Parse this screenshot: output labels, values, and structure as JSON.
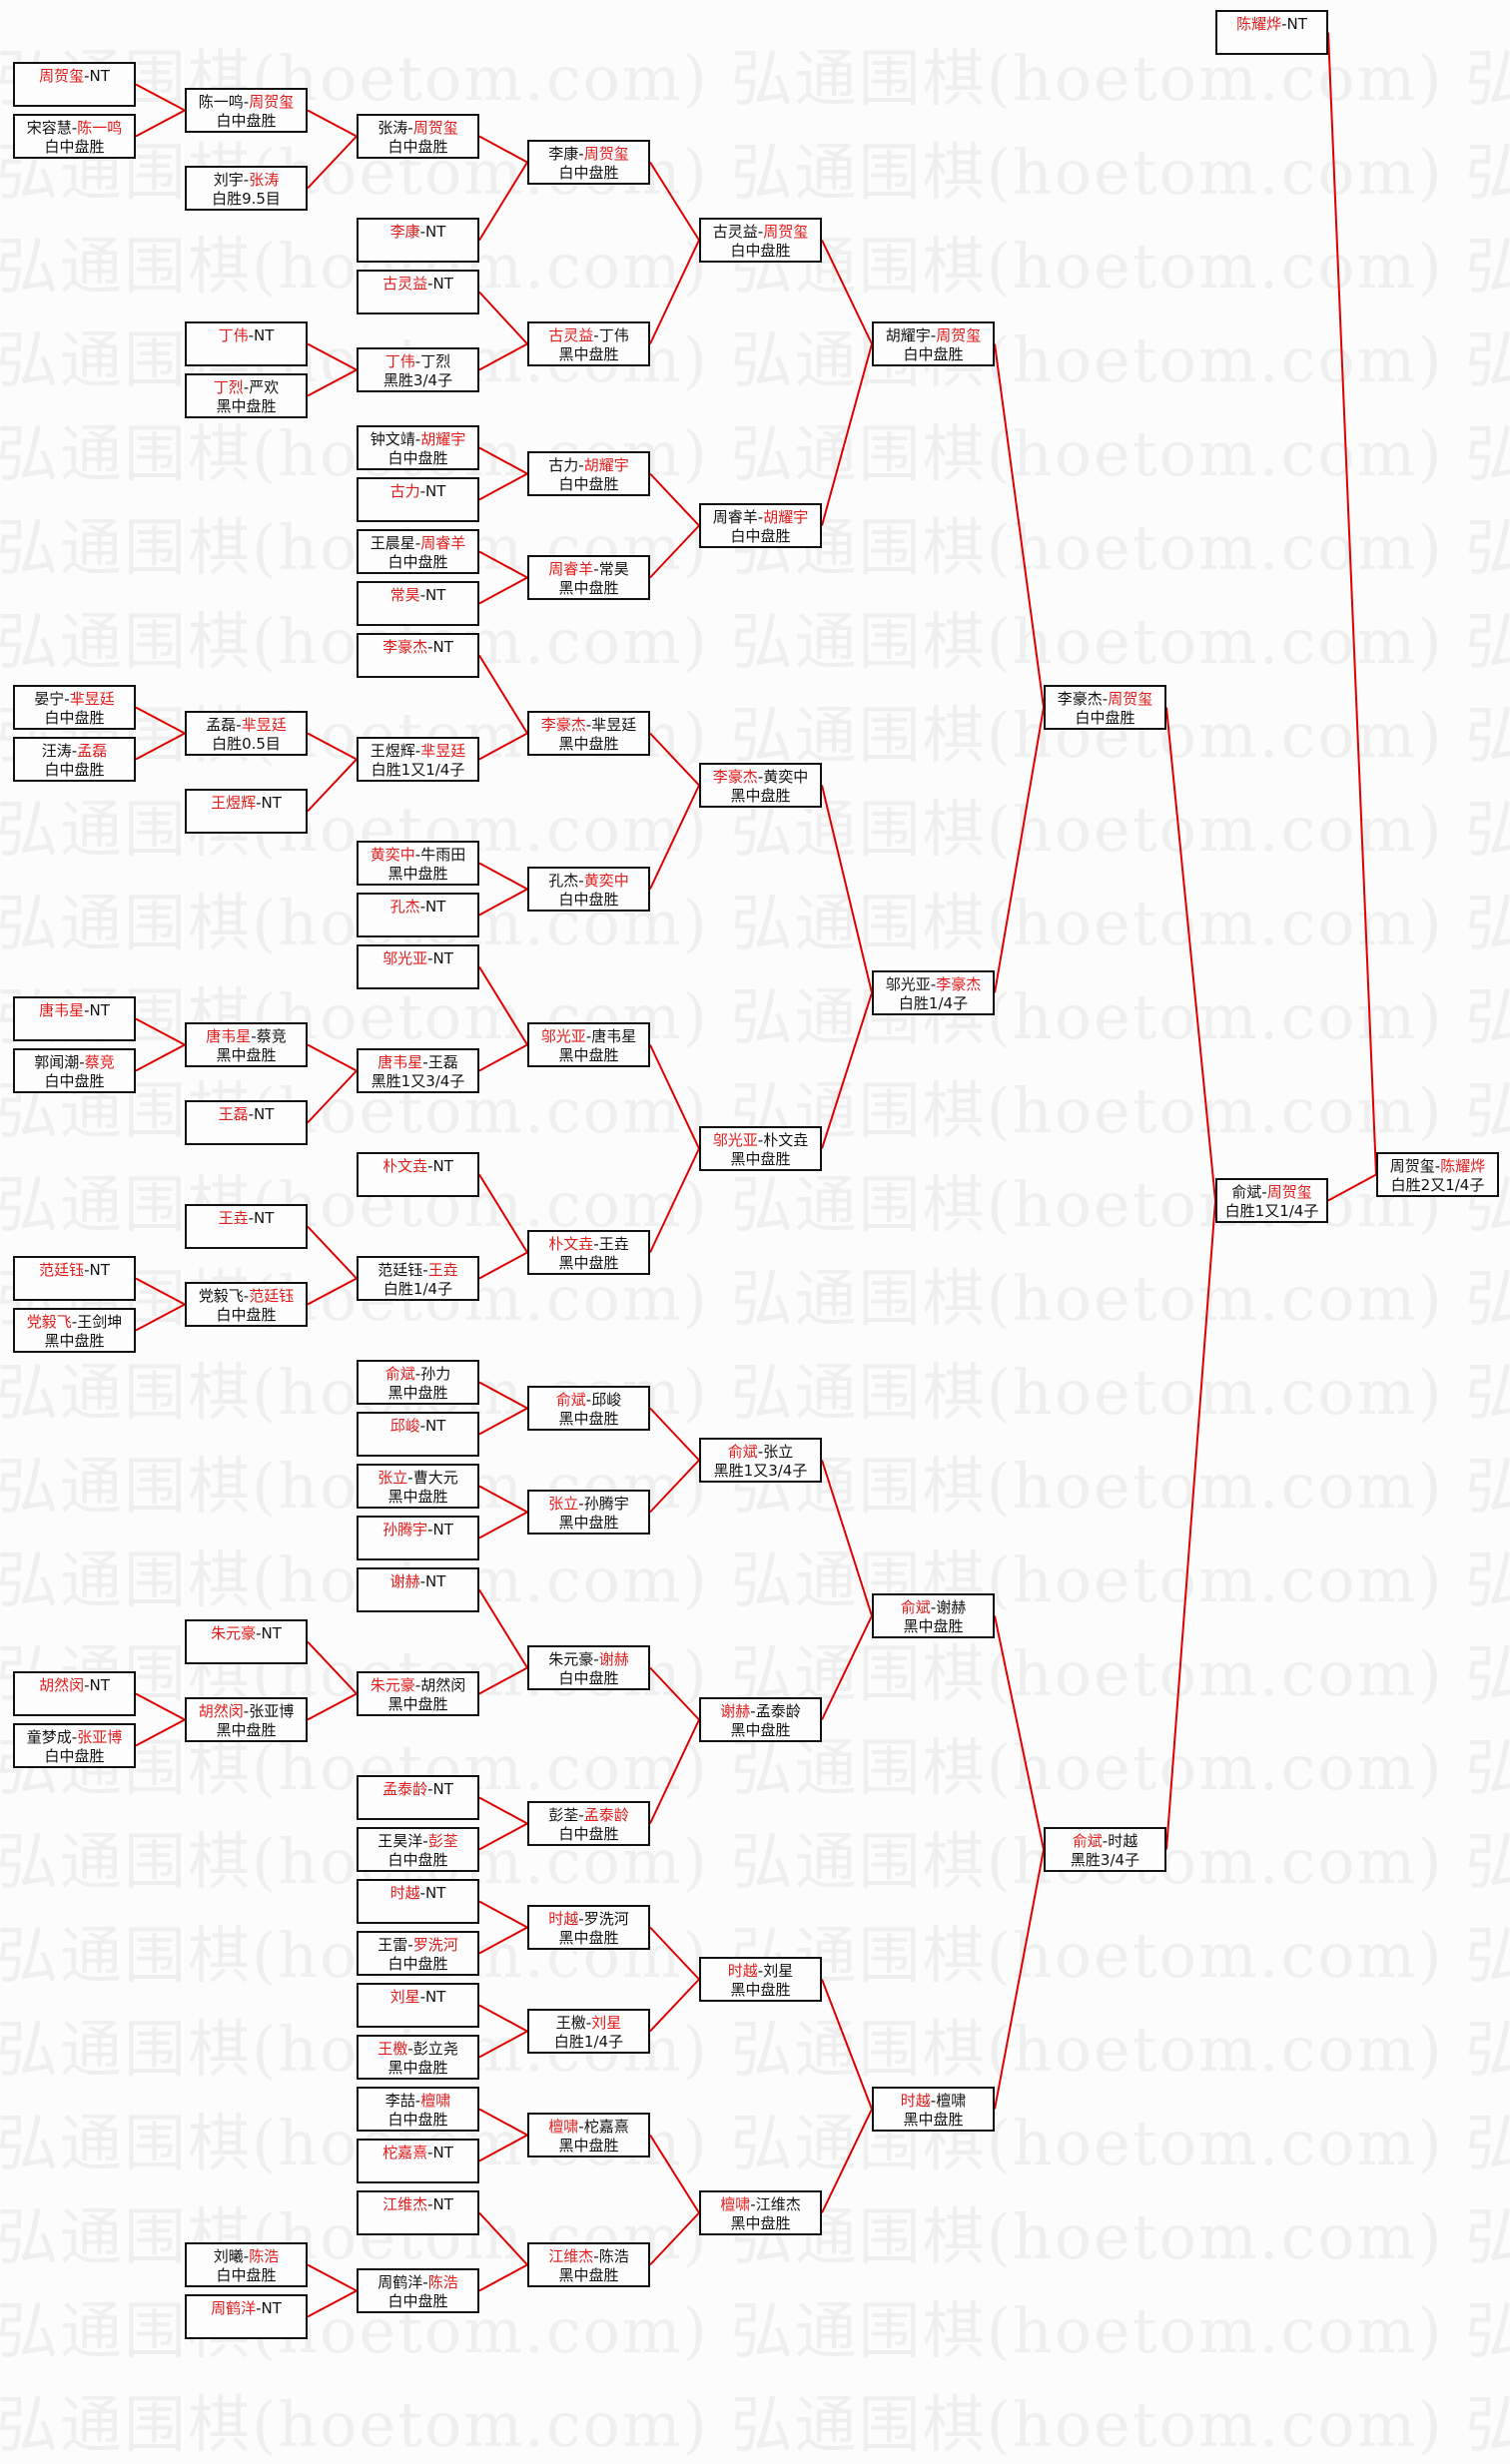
{
  "watermark": "弘通围棋(hoetom.com)",
  "colors": {
    "winner": "#e31c1c",
    "connector": "#e00000",
    "text": "#111111"
  },
  "rounds": [
    [
      {
        "p1": "周贺玺",
        "p2": "NT",
        "winner": "周贺玺",
        "result": ""
      },
      {
        "p1": "宋容慧",
        "p2": "陈一鸣",
        "winner": "陈一鸣",
        "result": "白中盘胜"
      },
      {
        "p1": "晏宁",
        "p2": "芈昱廷",
        "winner": "芈昱廷",
        "result": "白中盘胜"
      },
      {
        "p1": "汪涛",
        "p2": "孟磊",
        "winner": "孟磊",
        "result": "白中盘胜"
      },
      {
        "p1": "唐韦星",
        "p2": "NT",
        "winner": "唐韦星",
        "result": ""
      },
      {
        "p1": "郭闻潮",
        "p2": "蔡竞",
        "winner": "蔡竞",
        "result": "白中盘胜"
      },
      {
        "p1": "范廷钰",
        "p2": "NT",
        "winner": "范廷钰",
        "result": ""
      },
      {
        "p1": "党毅飞",
        "p2": "王剑坤",
        "winner": "党毅飞",
        "result": "黑中盘胜"
      },
      {
        "p1": "胡然闵",
        "p2": "NT",
        "winner": "胡然闵",
        "result": ""
      },
      {
        "p1": "童梦成",
        "p2": "张亚博",
        "winner": "张亚博",
        "result": "白中盘胜"
      }
    ],
    [
      {
        "p1": "陈一鸣",
        "p2": "周贺玺",
        "winner": "周贺玺",
        "result": "白中盘胜"
      },
      {
        "p1": "刘宇",
        "p2": "张涛",
        "winner": "张涛",
        "result": "白胜9.5目"
      },
      {
        "p1": "丁伟",
        "p2": "NT",
        "winner": "丁伟",
        "result": ""
      },
      {
        "p1": "丁烈",
        "p2": "严欢",
        "winner": "丁烈",
        "result": "黑中盘胜"
      },
      {
        "p1": "孟磊",
        "p2": "芈昱廷",
        "winner": "芈昱廷",
        "result": "白胜0.5目"
      },
      {
        "p1": "王煜辉",
        "p2": "NT",
        "winner": "王煜辉",
        "result": ""
      },
      {
        "p1": "唐韦星",
        "p2": "蔡竞",
        "winner": "唐韦星",
        "result": "黑中盘胜"
      },
      {
        "p1": "王磊",
        "p2": "NT",
        "winner": "王磊",
        "result": ""
      },
      {
        "p1": "王垚",
        "p2": "NT",
        "winner": "王垚",
        "result": ""
      },
      {
        "p1": "党毅飞",
        "p2": "范廷钰",
        "winner": "范廷钰",
        "result": "白中盘胜"
      },
      {
        "p1": "朱元豪",
        "p2": "NT",
        "winner": "朱元豪",
        "result": ""
      },
      {
        "p1": "胡然闵",
        "p2": "张亚博",
        "winner": "胡然闵",
        "result": "黑中盘胜"
      },
      {
        "p1": "刘曦",
        "p2": "陈浩",
        "winner": "陈浩",
        "result": "白中盘胜"
      },
      {
        "p1": "周鹤洋",
        "p2": "NT",
        "winner": "周鹤洋",
        "result": ""
      }
    ],
    [
      {
        "p1": "张涛",
        "p2": "周贺玺",
        "winner": "周贺玺",
        "result": "白中盘胜"
      },
      {
        "p1": "李康",
        "p2": "NT",
        "winner": "李康",
        "result": ""
      },
      {
        "p1": "古灵益",
        "p2": "NT",
        "winner": "古灵益",
        "result": ""
      },
      {
        "p1": "丁伟",
        "p2": "丁烈",
        "winner": "丁伟",
        "result": "黑胜3/4子"
      },
      {
        "p1": "钟文靖",
        "p2": "胡耀宇",
        "winner": "胡耀宇",
        "result": "白中盘胜"
      },
      {
        "p1": "古力",
        "p2": "NT",
        "winner": "古力",
        "result": ""
      },
      {
        "p1": "王晨星",
        "p2": "周睿羊",
        "winner": "周睿羊",
        "result": "白中盘胜"
      },
      {
        "p1": "常昊",
        "p2": "NT",
        "winner": "常昊",
        "result": ""
      },
      {
        "p1": "李豪杰",
        "p2": "NT",
        "winner": "李豪杰",
        "result": ""
      },
      {
        "p1": "王煜辉",
        "p2": "芈昱廷",
        "winner": "芈昱廷",
        "result": "白胜1又1/4子"
      },
      {
        "p1": "黄奕中",
        "p2": "牛雨田",
        "winner": "黄奕中",
        "result": "黑中盘胜"
      },
      {
        "p1": "孔杰",
        "p2": "NT",
        "winner": "孔杰",
        "result": ""
      },
      {
        "p1": "邬光亚",
        "p2": "NT",
        "winner": "邬光亚",
        "result": ""
      },
      {
        "p1": "唐韦星",
        "p2": "王磊",
        "winner": "唐韦星",
        "result": "黑胜1又3/4子"
      },
      {
        "p1": "朴文垚",
        "p2": "NT",
        "winner": "朴文垚",
        "result": ""
      },
      {
        "p1": "范廷钰",
        "p2": "王垚",
        "winner": "王垚",
        "result": "白胜1/4子"
      },
      {
        "p1": "俞斌",
        "p2": "孙力",
        "winner": "俞斌",
        "result": "黑中盘胜"
      },
      {
        "p1": "邱峻",
        "p2": "NT",
        "winner": "邱峻",
        "result": ""
      },
      {
        "p1": "张立",
        "p2": "曹大元",
        "winner": "张立",
        "result": "黑中盘胜"
      },
      {
        "p1": "孙腾宇",
        "p2": "NT",
        "winner": "孙腾宇",
        "result": ""
      },
      {
        "p1": "谢赫",
        "p2": "NT",
        "winner": "谢赫",
        "result": ""
      },
      {
        "p1": "朱元豪",
        "p2": "胡然闵",
        "winner": "朱元豪",
        "result": "黑中盘胜"
      },
      {
        "p1": "孟泰龄",
        "p2": "NT",
        "winner": "孟泰龄",
        "result": ""
      },
      {
        "p1": "王昊洋",
        "p2": "彭荃",
        "winner": "彭荃",
        "result": "白中盘胜"
      },
      {
        "p1": "时越",
        "p2": "NT",
        "winner": "时越",
        "result": ""
      },
      {
        "p1": "王雷",
        "p2": "罗洗河",
        "winner": "罗洗河",
        "result": "白中盘胜"
      },
      {
        "p1": "刘星",
        "p2": "NT",
        "winner": "刘星",
        "result": ""
      },
      {
        "p1": "王檄",
        "p2": "彭立尧",
        "winner": "王檄",
        "result": "黑中盘胜"
      },
      {
        "p1": "李喆",
        "p2": "檀啸",
        "winner": "檀啸",
        "result": "白中盘胜"
      },
      {
        "p1": "柁嘉熹",
        "p2": "NT",
        "winner": "柁嘉熹",
        "result": ""
      },
      {
        "p1": "江维杰",
        "p2": "NT",
        "winner": "江维杰",
        "result": ""
      },
      {
        "p1": "周鹤洋",
        "p2": "陈浩",
        "winner": "陈浩",
        "result": "白中盘胜"
      }
    ],
    [
      {
        "p1": "李康",
        "p2": "周贺玺",
        "winner": "周贺玺",
        "result": "白中盘胜"
      },
      {
        "p1": "古灵益",
        "p2": "丁伟",
        "winner": "古灵益",
        "result": "黑中盘胜"
      },
      {
        "p1": "古力",
        "p2": "胡耀宇",
        "winner": "胡耀宇",
        "result": "白中盘胜"
      },
      {
        "p1": "周睿羊",
        "p2": "常昊",
        "winner": "周睿羊",
        "result": "黑中盘胜"
      },
      {
        "p1": "李豪杰",
        "p2": "芈昱廷",
        "winner": "李豪杰",
        "result": "黑中盘胜"
      },
      {
        "p1": "孔杰",
        "p2": "黄奕中",
        "winner": "黄奕中",
        "result": "白中盘胜"
      },
      {
        "p1": "邬光亚",
        "p2": "唐韦星",
        "winner": "邬光亚",
        "result": "黑中盘胜"
      },
      {
        "p1": "朴文垚",
        "p2": "王垚",
        "winner": "朴文垚",
        "result": "黑中盘胜"
      },
      {
        "p1": "俞斌",
        "p2": "邱峻",
        "winner": "俞斌",
        "result": "黑中盘胜"
      },
      {
        "p1": "张立",
        "p2": "孙腾宇",
        "winner": "张立",
        "result": "黑中盘胜"
      },
      {
        "p1": "朱元豪",
        "p2": "谢赫",
        "winner": "谢赫",
        "result": "白中盘胜"
      },
      {
        "p1": "彭荃",
        "p2": "孟泰龄",
        "winner": "孟泰龄",
        "result": "白中盘胜"
      },
      {
        "p1": "时越",
        "p2": "罗洗河",
        "winner": "时越",
        "result": "黑中盘胜"
      },
      {
        "p1": "王檄",
        "p2": "刘星",
        "winner": "刘星",
        "result": "白胜1/4子"
      },
      {
        "p1": "檀啸",
        "p2": "柁嘉熹",
        "winner": "檀啸",
        "result": "黑中盘胜"
      },
      {
        "p1": "江维杰",
        "p2": "陈浩",
        "winner": "江维杰",
        "result": "黑中盘胜"
      }
    ],
    [
      {
        "p1": "古灵益",
        "p2": "周贺玺",
        "winner": "周贺玺",
        "result": "白中盘胜"
      },
      {
        "p1": "周睿羊",
        "p2": "胡耀宇",
        "winner": "胡耀宇",
        "result": "白中盘胜"
      },
      {
        "p1": "李豪杰",
        "p2": "黄奕中",
        "winner": "李豪杰",
        "result": "黑中盘胜"
      },
      {
        "p1": "邬光亚",
        "p2": "朴文垚",
        "winner": "邬光亚",
        "result": "黑中盘胜"
      },
      {
        "p1": "俞斌",
        "p2": "张立",
        "winner": "俞斌",
        "result": "黑胜1又3/4子"
      },
      {
        "p1": "谢赫",
        "p2": "孟泰龄",
        "winner": "谢赫",
        "result": "黑中盘胜"
      },
      {
        "p1": "时越",
        "p2": "刘星",
        "winner": "时越",
        "result": "黑中盘胜"
      },
      {
        "p1": "檀啸",
        "p2": "江维杰",
        "winner": "檀啸",
        "result": "黑中盘胜"
      }
    ],
    [
      {
        "p1": "胡耀宇",
        "p2": "周贺玺",
        "winner": "周贺玺",
        "result": "白中盘胜"
      },
      {
        "p1": "邬光亚",
        "p2": "李豪杰",
        "winner": "李豪杰",
        "result": "白胜1/4子"
      },
      {
        "p1": "俞斌",
        "p2": "谢赫",
        "winner": "俞斌",
        "result": "黑中盘胜"
      },
      {
        "p1": "时越",
        "p2": "檀啸",
        "winner": "时越",
        "result": "黑中盘胜"
      }
    ],
    [
      {
        "p1": "李豪杰",
        "p2": "周贺玺",
        "winner": "周贺玺",
        "result": "白中盘胜"
      },
      {
        "p1": "俞斌",
        "p2": "时越",
        "winner": "俞斌",
        "result": "黑胜3/4子"
      }
    ],
    [
      {
        "p1": "陈耀烨",
        "p2": "NT",
        "winner": "陈耀烨",
        "result": ""
      },
      {
        "p1": "俞斌",
        "p2": "周贺玺",
        "winner": "周贺玺",
        "result": "白胜1又1/4子"
      }
    ],
    [
      {
        "p1": "周贺玺",
        "p2": "陈耀烨",
        "winner": "陈耀烨",
        "result": "白胜2又1/4子"
      }
    ]
  ]
}
